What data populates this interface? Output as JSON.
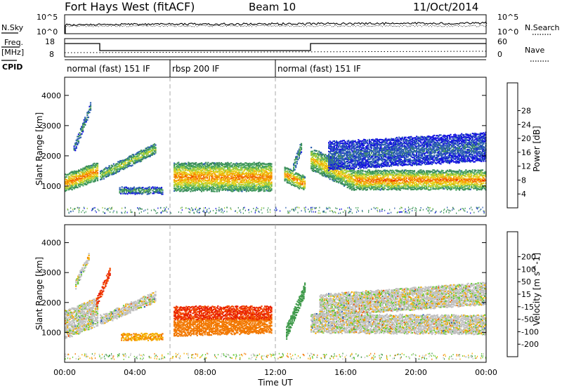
{
  "header": {
    "radar": "Fort Hays West (fitACF)",
    "beam": "Beam 10",
    "date": "11/Oct/2014"
  },
  "strips": {
    "nsky_label": "N.Sky",
    "nsky_ticks": [
      "10^5",
      "10^0"
    ],
    "nsearch_label": "N.Search",
    "nsearch_ticks": [
      "10^5",
      "10^0"
    ],
    "freq_label": "Freq.",
    "freq_unit": "[MHz]",
    "freq_ticks": [
      "18",
      "8"
    ],
    "nave_label": "Nave",
    "nave_ticks": [
      "60",
      "0"
    ],
    "cpid_label": "CPID"
  },
  "modes": [
    {
      "label": "normal (fast) 151 IF",
      "start_h": 0,
      "end_h": 6
    },
    {
      "label": "rbsp 200 IF",
      "start_h": 6,
      "end_h": 12
    },
    {
      "label": "normal (fast) 151 IF",
      "start_h": 12,
      "end_h": 24
    }
  ],
  "colors": {
    "power": [
      "#1414e0",
      "#2c5fb0",
      "#3a8c5a",
      "#4aa660",
      "#9ccc3c",
      "#e6d21e",
      "#f5a300",
      "#f26a00",
      "#e81c00"
    ],
    "velocity": [
      "#e81c00",
      "#f24a00",
      "#f27800",
      "#f5ae00",
      "#c0c0c0",
      "#c0c0c0",
      "#66cc33",
      "#3f9a4a",
      "#2c5fb0",
      "#1a1aa0"
    ]
  },
  "chart_data": [
    {
      "type": "heatmap",
      "panel": "power",
      "ylabel": "Slant Range [km]",
      "ylim": [
        0,
        4600
      ],
      "xlim": [
        0,
        24
      ],
      "yticks": [
        "1000",
        "2000",
        "3000",
        "4000"
      ],
      "colorbar_label": "Power [dB]",
      "colorbar_ticks": [
        "4",
        "8",
        "12",
        "16",
        "20",
        "24",
        "28"
      ],
      "colorbar_range": [
        0,
        32
      ],
      "features": [
        {
          "start_h": 0.0,
          "end_h": 1.9,
          "center_start_km": 1100,
          "center_end_km": 1500,
          "width_km": 550,
          "peak_db": 27
        },
        {
          "start_h": 0.5,
          "end_h": 1.5,
          "center_start_km": 2200,
          "center_end_km": 3700,
          "width_km": 250,
          "peak_db": 10
        },
        {
          "start_h": 2.0,
          "end_h": 5.2,
          "center_start_km": 1350,
          "center_end_km": 2250,
          "width_km": 300,
          "peak_db": 18
        },
        {
          "start_h": 3.1,
          "end_h": 5.6,
          "center_start_km": 850,
          "center_end_km": 850,
          "width_km": 180,
          "peak_db": 12
        },
        {
          "start_h": 6.2,
          "end_h": 11.8,
          "center_start_km": 1300,
          "center_end_km": 1300,
          "width_km": 900,
          "peak_db": 26
        },
        {
          "start_h": 12.5,
          "end_h": 13.7,
          "center_start_km": 1400,
          "center_end_km": 1050,
          "width_km": 450,
          "peak_db": 26
        },
        {
          "start_h": 13.0,
          "end_h": 13.5,
          "center_start_km": 1600,
          "center_end_km": 2400,
          "width_km": 300,
          "peak_db": 14
        },
        {
          "start_h": 14.0,
          "end_h": 16.5,
          "center_start_km": 1900,
          "center_end_km": 1200,
          "width_km": 700,
          "peak_db": 22
        },
        {
          "start_h": 16.5,
          "end_h": 24.0,
          "center_start_km": 1200,
          "center_end_km": 1200,
          "width_km": 600,
          "peak_db": 27
        },
        {
          "start_h": 15.0,
          "end_h": 24.0,
          "center_start_km": 2000,
          "center_end_km": 2300,
          "width_km": 900,
          "peak_db": 6
        }
      ]
    },
    {
      "type": "heatmap",
      "panel": "velocity",
      "ylabel": "Slant Range [km]",
      "ylim": [
        0,
        4600
      ],
      "xlim": [
        0,
        24
      ],
      "yticks": [
        "1000",
        "2000",
        "3000",
        "4000"
      ],
      "colorbar_label": "Velocity [m s^-1]",
      "colorbar_ticks": [
        "-200",
        "-100",
        "-50",
        "-15",
        "15",
        "50",
        "100",
        "200"
      ],
      "colorbar_range": [
        -250,
        250
      ],
      "xlabel": "Time UT",
      "xticks": [
        "00:00",
        "04:00",
        "08:00",
        "12:00",
        "16:00",
        "20:00",
        "00:00"
      ],
      "features": [
        {
          "start_h": 0.0,
          "end_h": 1.9,
          "center_start_km": 1250,
          "center_end_km": 1700,
          "width_km": 900,
          "velocity": 0
        },
        {
          "start_h": 0.6,
          "end_h": 1.4,
          "center_start_km": 2600,
          "center_end_km": 3600,
          "width_km": 250,
          "velocity": 0
        },
        {
          "start_h": 2.0,
          "end_h": 5.2,
          "center_start_km": 1400,
          "center_end_km": 2200,
          "width_km": 300,
          "velocity": 0
        },
        {
          "start_h": 1.8,
          "end_h": 2.6,
          "center_start_km": 2000,
          "center_end_km": 3100,
          "width_km": 250,
          "velocity": -200
        },
        {
          "start_h": 3.2,
          "end_h": 5.6,
          "center_start_km": 850,
          "center_end_km": 850,
          "width_km": 180,
          "velocity": -40
        },
        {
          "start_h": 6.2,
          "end_h": 11.8,
          "center_start_km": 1150,
          "center_end_km": 1250,
          "width_km": 500,
          "velocity": -80
        },
        {
          "start_h": 6.2,
          "end_h": 11.8,
          "center_start_km": 1650,
          "center_end_km": 1650,
          "width_km": 400,
          "velocity": -200
        },
        {
          "start_h": 12.6,
          "end_h": 13.7,
          "center_start_km": 1000,
          "center_end_km": 2500,
          "width_km": 400,
          "velocity": 70
        },
        {
          "start_h": 14.0,
          "end_h": 24.0,
          "center_start_km": 1300,
          "center_end_km": 1250,
          "width_km": 600,
          "velocity": 0
        },
        {
          "start_h": 14.5,
          "end_h": 24.0,
          "center_start_km": 1900,
          "center_end_km": 2300,
          "width_km": 700,
          "velocity": 0
        }
      ]
    }
  ]
}
